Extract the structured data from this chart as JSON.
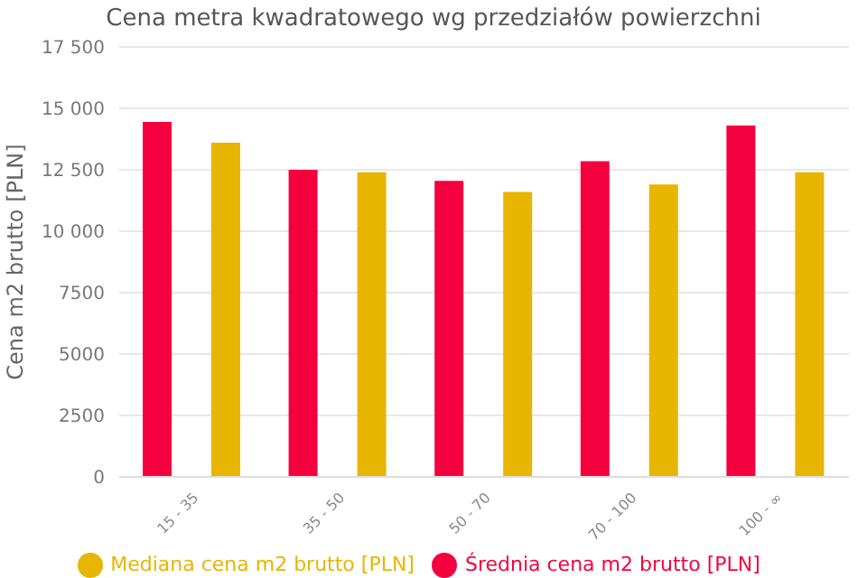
{
  "chart_data": {
    "type": "bar",
    "title": "Cena metra kwadratowego wg przedziałów powierzchni",
    "ylabel": "Cena m2 brutto [PLN]",
    "categories": [
      "15 - 35",
      "35 - 50",
      "50 - 70",
      "70 - 100",
      "100 - ∞"
    ],
    "series": [
      {
        "name": "Średnia cena m2 brutto [PLN]",
        "color": "#f5003f",
        "values": [
          14450,
          12500,
          12050,
          12850,
          14300
        ]
      },
      {
        "name": "Mediana cena m2 brutto [PLN]",
        "color": "#e8b500",
        "values": [
          13600,
          12400,
          11600,
          11900,
          12400
        ]
      }
    ],
    "ylim": [
      0,
      17500
    ],
    "yticks": [
      0,
      {
        "value": 2500,
        "label": "2500"
      },
      {
        "value": 5000,
        "label": "5000"
      },
      {
        "value": 7500,
        "label": "7500"
      },
      {
        "value": 10000,
        "label": "10 000"
      },
      {
        "value": 12500,
        "label": "12 500"
      },
      {
        "value": 15000,
        "label": "15 000"
      },
      {
        "value": 17500,
        "label": "17 500"
      }
    ],
    "grid": "y",
    "legend": "bottom"
  }
}
